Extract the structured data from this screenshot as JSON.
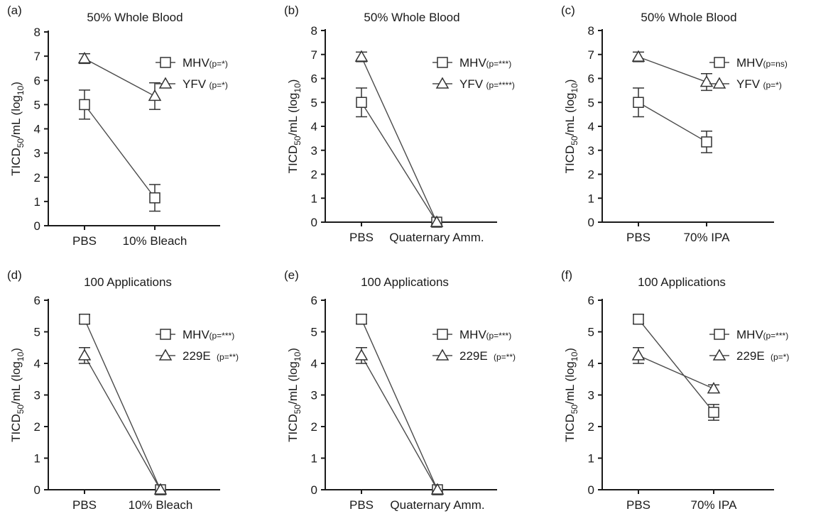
{
  "chart_data": [
    {
      "panel": "(a)",
      "type": "line",
      "title": "50% Whole  Blood",
      "ylabel": "TICD50/mL (log10)",
      "categories": [
        "PBS",
        "10% Bleach"
      ],
      "ylim": [
        0,
        8
      ],
      "yticks": [
        "0",
        "1",
        "2",
        "3",
        "4",
        "5",
        "6",
        "7",
        "8"
      ],
      "series": [
        {
          "name": "MHV",
          "p": "(p=*)",
          "marker": "square",
          "values": [
            5.0,
            1.15
          ],
          "err": [
            0.6,
            0.55
          ]
        },
        {
          "name": "YFV",
          "p": "(p=*)",
          "marker": "triangle",
          "values": [
            6.9,
            5.35
          ],
          "err": [
            0.2,
            0.55
          ]
        }
      ]
    },
    {
      "panel": "(b)",
      "type": "line",
      "title": "50% Whole Blood",
      "ylabel": "TICD50/mL (log10)",
      "categories": [
        "PBS",
        "Quaternary Amm."
      ],
      "ylim": [
        0,
        8
      ],
      "yticks": [
        "0",
        "1",
        "2",
        "3",
        "4",
        "5",
        "6",
        "7",
        "8"
      ],
      "series": [
        {
          "name": "MHV",
          "p": "(p=***)",
          "marker": "square",
          "values": [
            5.0,
            0.0
          ],
          "err": [
            0.6,
            0.0
          ]
        },
        {
          "name": "YFV",
          "p": "(p=****)",
          "marker": "triangle",
          "values": [
            6.9,
            0.0
          ],
          "err": [
            0.2,
            0.0
          ]
        }
      ]
    },
    {
      "panel": "(c)",
      "type": "line",
      "title": "50% Whole  Blood",
      "ylabel": "TICD50/mL (log10)",
      "categories": [
        "PBS",
        "70% IPA"
      ],
      "ylim": [
        0,
        8
      ],
      "yticks": [
        "0",
        "1",
        "2",
        "3",
        "4",
        "5",
        "6",
        "7",
        "8"
      ],
      "series": [
        {
          "name": "MHV",
          "p": "(p=ns)",
          "marker": "square",
          "values": [
            5.0,
            3.35
          ],
          "err": [
            0.6,
            0.45
          ]
        },
        {
          "name": "YFV",
          "p": "(p=*)",
          "marker": "triangle",
          "values": [
            6.9,
            5.85
          ],
          "err": [
            0.2,
            0.35
          ]
        }
      ]
    },
    {
      "panel": "(d)",
      "type": "line",
      "title": "100 Applications",
      "ylabel": "TICD50/mL (log10)",
      "categories": [
        "PBS",
        "10% Bleach"
      ],
      "ylim": [
        0,
        6
      ],
      "yticks": [
        "0",
        "1",
        "2",
        "3",
        "4",
        "5",
        "6"
      ],
      "series": [
        {
          "name": "MHV",
          "p": "(p=***)",
          "marker": "square",
          "values": [
            5.4,
            0.0
          ],
          "err": [
            0.15,
            0.0
          ]
        },
        {
          "name": "229E",
          "p": "(p=**)",
          "marker": "triangle",
          "values": [
            4.25,
            0.0
          ],
          "err": [
            0.25,
            0.0
          ]
        }
      ]
    },
    {
      "panel": "(e)",
      "type": "line",
      "title": "100 Applications",
      "ylabel": "TICD50/mL (log10)",
      "categories": [
        "PBS",
        "Quaternary Amm."
      ],
      "ylim": [
        0,
        6
      ],
      "yticks": [
        "0",
        "1",
        "2",
        "3",
        "4",
        "5",
        "6"
      ],
      "series": [
        {
          "name": "MHV",
          "p": "(p=***)",
          "marker": "square",
          "values": [
            5.4,
            0.0
          ],
          "err": [
            0.15,
            0.0
          ]
        },
        {
          "name": "229E",
          "p": "(p=**)",
          "marker": "triangle",
          "values": [
            4.25,
            0.0
          ],
          "err": [
            0.25,
            0.0
          ]
        }
      ]
    },
    {
      "panel": "(f)",
      "type": "line",
      "title": "100 Applications",
      "ylabel": "TICD50/mL (log10)",
      "categories": [
        "PBS",
        "70% IPA"
      ],
      "ylim": [
        0,
        6
      ],
      "yticks": [
        "0",
        "1",
        "2",
        "3",
        "4",
        "5",
        "6"
      ],
      "series": [
        {
          "name": "MHV",
          "p": "(p=***)",
          "marker": "square",
          "values": [
            5.4,
            2.45
          ],
          "err": [
            0.15,
            0.25
          ]
        },
        {
          "name": "229E",
          "p": "(p=*)",
          "marker": "triangle",
          "values": [
            4.25,
            3.2
          ],
          "err": [
            0.25,
            0.12
          ]
        }
      ]
    }
  ]
}
